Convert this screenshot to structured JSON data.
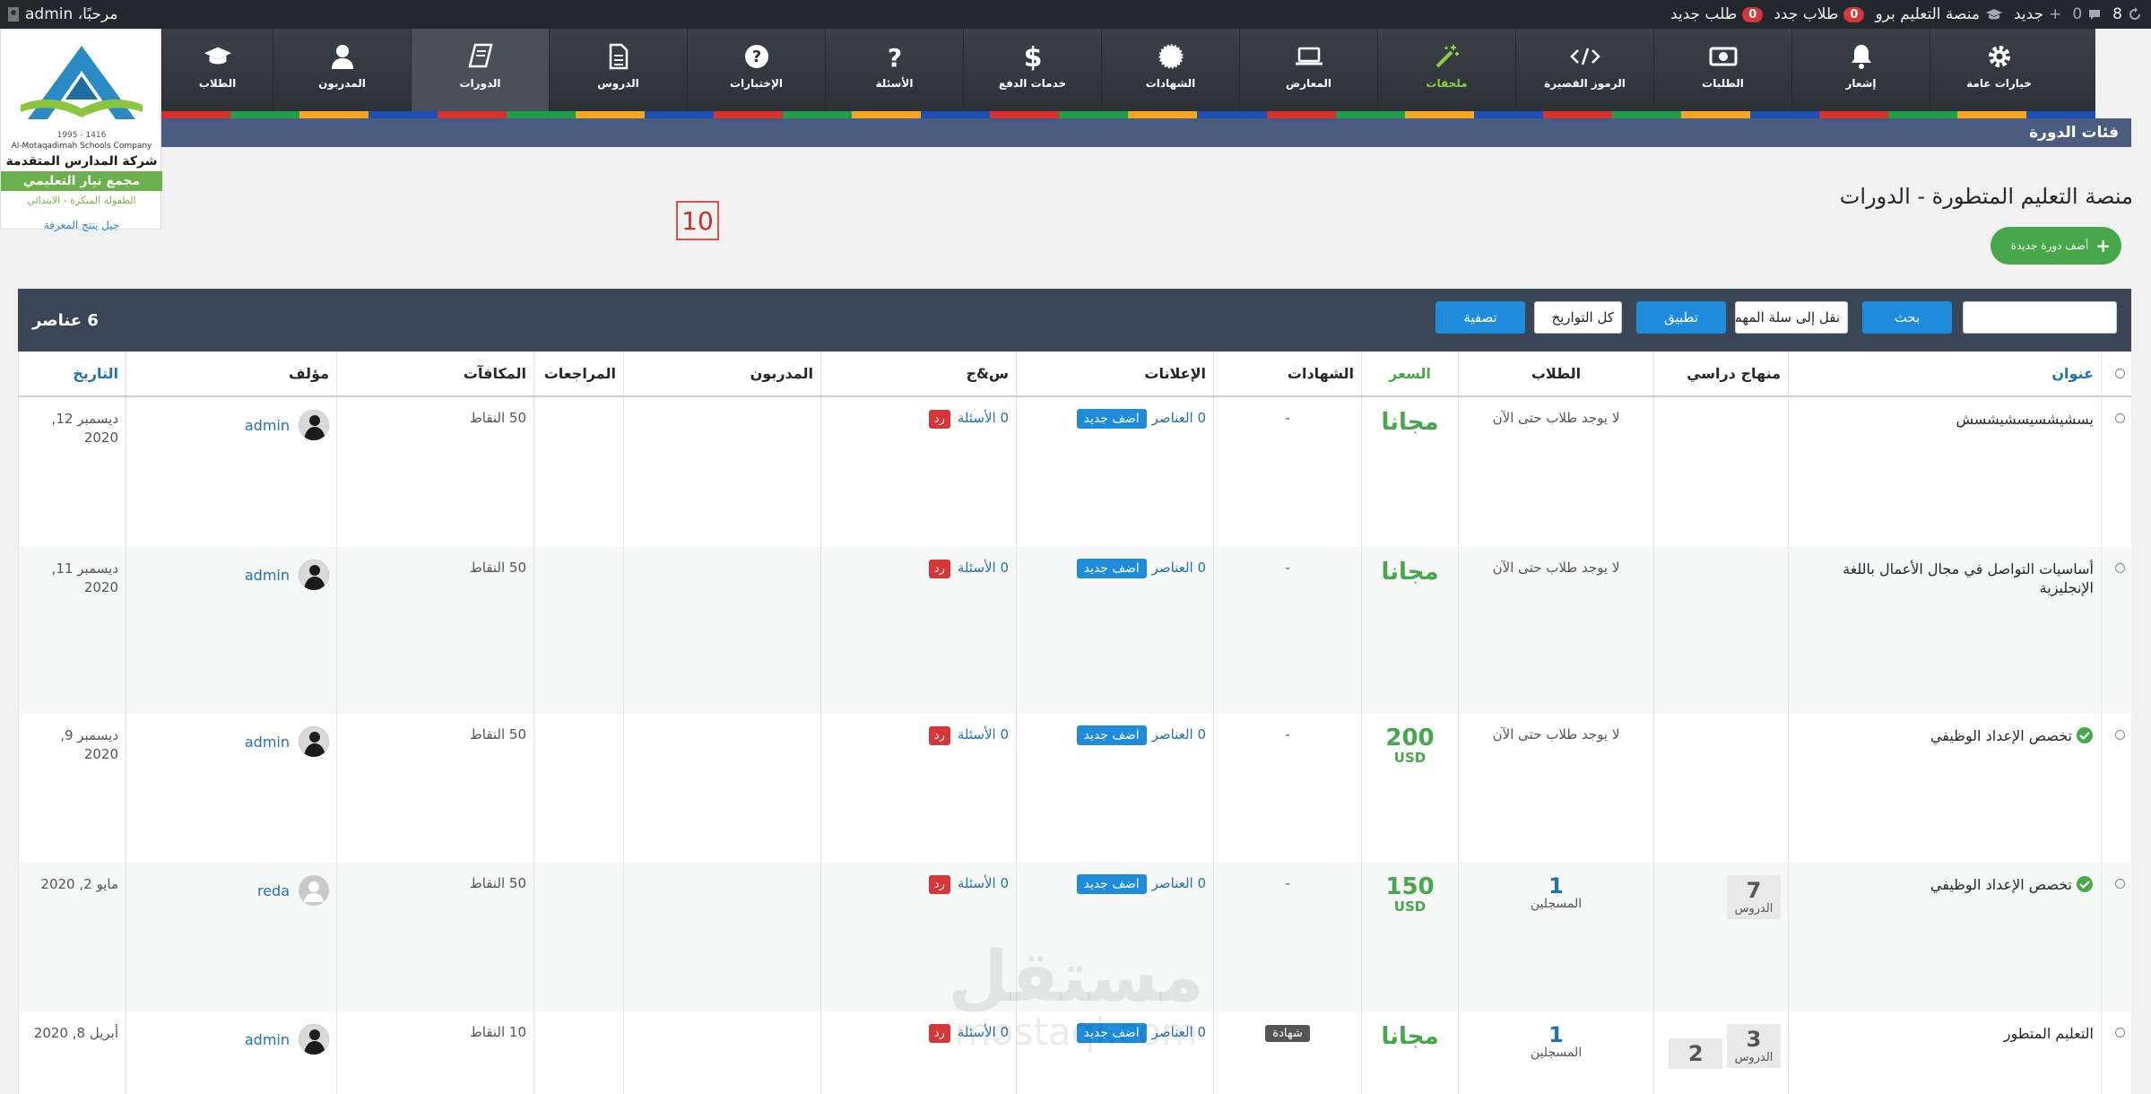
{
  "adminbar": {
    "greeting": "مرحبًا، admin",
    "updates_count": "8",
    "comments_count": "0",
    "new_label": "جديد",
    "site_name": "منصة التعليم برو",
    "new_students_count": "0",
    "new_students_label": "طلاب جدد",
    "new_requests_count": "0",
    "new_requests_label": "طلب جديد"
  },
  "logo": {
    "years": "1416 - 1995",
    "name_en": "Al-Motaqadimah Schools Company",
    "name_ar": "شركة المدارس المتقدمة",
    "complex": "مجمع نيار التعليمي",
    "sub": "الطفولة المبكرة - الابتدائي",
    "slogan": "جيل ينتج المعرفة"
  },
  "nav": [
    {
      "label": "خيارات عامة",
      "icon": "gear-icon"
    },
    {
      "label": "إشعار",
      "icon": "bell-icon"
    },
    {
      "label": "الطلبات",
      "icon": "money-icon"
    },
    {
      "label": "الرموز القصيرة",
      "icon": "code-icon"
    },
    {
      "label": "ملحقات",
      "icon": "magic-wand-icon"
    },
    {
      "label": "المعارض",
      "icon": "laptop-icon"
    },
    {
      "label": "الشهادات",
      "icon": "certificate-icon"
    },
    {
      "label": "خدمات الدفع",
      "icon": "dollar-icon"
    },
    {
      "label": "الأسئلة",
      "icon": "question-icon"
    },
    {
      "label": "الإختبارات",
      "icon": "question-circle-icon"
    },
    {
      "label": "الدروس",
      "icon": "document-icon"
    },
    {
      "label": "الدورات",
      "icon": "book-icon"
    },
    {
      "label": "المدربون",
      "icon": "user-icon"
    },
    {
      "label": "الطلاب",
      "icon": "graduation-cap-icon"
    }
  ],
  "colors": {
    "strip": [
      "#d6312c",
      "#1e9e4a",
      "#f5a623",
      "#1f4fb5",
      "#d6312c",
      "#1e9e4a",
      "#f5a623",
      "#1f4fb5",
      "#d6312c",
      "#1e9e4a",
      "#f5a623",
      "#1f4fb5",
      "#d6312c",
      "#1e9e4a",
      "#f5a623",
      "#1f4fb5",
      "#d6312c",
      "#1e9e4a",
      "#f5a623",
      "#1f4fb5",
      "#d6312c",
      "#1e9e4a",
      "#f5a623",
      "#1f4fb5",
      "#d6312c",
      "#1e9e4a",
      "#f5a623",
      "#1f4fb5"
    ],
    "accent": "#1e8cda",
    "price_green": "#46a84a"
  },
  "section_title": "فئات الدورة",
  "page": {
    "title": "منصة التعليم المتطورة - الدورات",
    "add_course": "أضف دورة جديدة",
    "page_number": "10"
  },
  "filter": {
    "search_value": "",
    "search_button": "بحث",
    "bulk_action": "نقل إلى سلة المهملات",
    "apply_button": "تطبيق",
    "date_filter": "كل التواريخ",
    "filter_button": "تصفية",
    "count": "6 عناصر"
  },
  "columns": {
    "title": "عنوان",
    "curriculum": "منهاج دراسي",
    "students": "الطلاب",
    "price": "السعر",
    "certificates": "الشهادات",
    "announcements": "الإعلانات",
    "qa": "س&ج",
    "instructors": "المدربون",
    "reviews": "المراجعات",
    "rewards": "المكافآت",
    "author": "مؤلف",
    "date": "التاريخ"
  },
  "rows": [
    {
      "title": "يسشيشسيسشيشسش",
      "published": false,
      "lessons_num": "",
      "lessons_label": "",
      "students_num": "",
      "students_label": "لا يوجد طلاب حتى الآن",
      "price_value": "مجانا",
      "price_currency": "",
      "certificate": "-",
      "announcements": "0 العناصر",
      "add_new": "اضف جديد",
      "questions": "0 الأسئلة",
      "reply": "رد",
      "rewards": "50 النقاط",
      "author": "admin",
      "avatar": "dark",
      "date": "ديسمبر 12, 2020"
    },
    {
      "title": "أساسيات التواصل في مجال الأعمال باللغة الإنجليزية",
      "published": false,
      "lessons_num": "",
      "lessons_label": "",
      "students_num": "",
      "students_label": "لا يوجد طلاب حتى الآن",
      "price_value": "مجانا",
      "price_currency": "",
      "certificate": "-",
      "announcements": "0 العناصر",
      "add_new": "اضف جديد",
      "questions": "0 الأسئلة",
      "reply": "رد",
      "rewards": "50 النقاط",
      "author": "admin",
      "avatar": "dark",
      "date": "ديسمبر 11, 2020"
    },
    {
      "title": "تخصص الإعداد الوظيفي",
      "published": true,
      "lessons_num": "",
      "lessons_label": "",
      "students_num": "",
      "students_label": "لا يوجد طلاب حتى الآن",
      "price_value": "200",
      "price_currency": "USD",
      "certificate": "-",
      "announcements": "0 العناصر",
      "add_new": "اضف جديد",
      "questions": "0 الأسئلة",
      "reply": "رد",
      "rewards": "50 النقاط",
      "author": "admin",
      "avatar": "dark",
      "date": "ديسمبر 9, 2020"
    },
    {
      "title": "تخصص الإعداد الوظيفي",
      "published": true,
      "lessons_num": "7",
      "lessons_label": "الدروس",
      "students_num": "1",
      "students_label": "المسجلين",
      "price_value": "150",
      "price_currency": "USD",
      "certificate": "-",
      "announcements": "0 العناصر",
      "add_new": "اضف جديد",
      "questions": "0 الأسئلة",
      "reply": "رد",
      "rewards": "50 النقاط",
      "author": "reda",
      "avatar": "default",
      "date": "مايو 2, 2020"
    },
    {
      "title": "التعليم المتطور",
      "published": false,
      "lessons_num": "3",
      "lessons_label": "الدروس",
      "students_num": "1",
      "students_label": "المسجلين",
      "price_value": "مجانا",
      "price_currency": "",
      "certificate": "شهادة",
      "announcements": "0 العناصر",
      "add_new": "اضف جديد",
      "questions": "0 الأسئلة",
      "reply": "رد",
      "rewards": "10 النقاط",
      "author": "admin",
      "avatar": "dark",
      "date": "أبريل 8, 2020"
    }
  ],
  "partial_row": {
    "lessons_num": "2"
  },
  "watermark": {
    "ar": "مستقل",
    "en": "mostaql.com"
  }
}
